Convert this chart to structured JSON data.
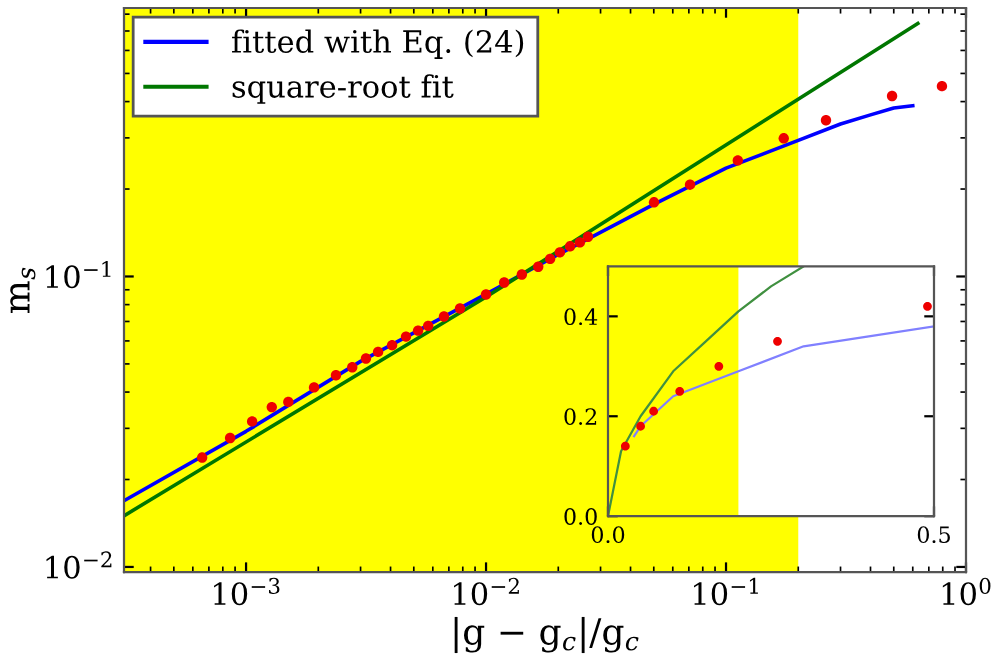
{
  "chart_data": [
    {
      "type": "scatter",
      "xlabel": "|g − g$_{c}$|/g$_{c}$",
      "ylabel": "m$_{s}$",
      "log": "xy",
      "xlim": [
        0.00031,
        1
      ],
      "ylim": [
        0.0096,
        0.84
      ],
      "xticks": [
        {
          "value": 0.001,
          "label": "10$^{−3}$"
        },
        {
          "value": 0.01,
          "label": "10$^{−2}$"
        },
        {
          "value": 0.1,
          "label": "10$^{−1}$"
        },
        {
          "value": 1,
          "label": "10$^{0}$"
        }
      ],
      "yticks": [
        {
          "value": 0.01,
          "label": "10$^{−2}$"
        },
        {
          "value": 0.1,
          "label": "10$^{−1}$"
        }
      ],
      "grid": false,
      "legend": "top left",
      "bands": [
        {
          "axis": "x",
          "from": 0.00031,
          "to": 0.2,
          "color": "#ffff00"
        }
      ],
      "series": [
        {
          "type": "line",
          "name": "fitted with Eq. (24)",
          "color": "#0000ff",
          "marker": "none",
          "line_style": "solid",
          "x": [
            0.00031,
            0.001,
            0.003,
            0.01,
            0.02,
            0.05,
            0.1,
            0.2,
            0.3,
            0.4,
            0.5,
            0.6
          ],
          "values": [
            0.0169,
            0.0293,
            0.051,
            0.087,
            0.119,
            0.177,
            0.236,
            0.294,
            0.335,
            0.36,
            0.38,
            0.387
          ]
        },
        {
          "type": "line",
          "name": "square-root fit",
          "color": "#007700",
          "marker": "none",
          "line_style": "solid",
          "x": [
            0.00031,
            0.01,
            0.63
          ],
          "values": [
            0.015,
            0.085,
            0.743
          ]
        },
        {
          "color": "#ee0000",
          "marker": "circle",
          "x": [
            0.000656,
            0.000858,
            0.00106,
            0.00128,
            0.0015,
            0.00192,
            0.00237,
            0.00277,
            0.00316,
            0.00355,
            0.00406,
            0.00464,
            0.00521,
            0.00574,
            0.00668,
            0.00779,
            0.01,
            0.0119,
            0.0141,
            0.0165,
            0.0185,
            0.0203,
            0.0224,
            0.0246,
            0.0266,
            0.0501,
            0.0708,
            0.112,
            0.174,
            0.261,
            0.492,
            0.794
          ],
          "values": [
            0.0238,
            0.0278,
            0.0317,
            0.0355,
            0.037,
            0.0415,
            0.0457,
            0.0487,
            0.0522,
            0.055,
            0.058,
            0.0621,
            0.0651,
            0.0676,
            0.0728,
            0.0776,
            0.0867,
            0.0953,
            0.1016,
            0.108,
            0.115,
            0.121,
            0.127,
            0.131,
            0.137,
            0.18,
            0.207,
            0.251,
            0.299,
            0.345,
            0.418,
            0.452
          ]
        }
      ]
    },
    {
      "type": "scatter",
      "xlim": [
        0,
        0.5
      ],
      "ylim": [
        0,
        0.5
      ],
      "xticks": [
        {
          "value": 0,
          "label": "0.0"
        },
        0.5
      ],
      "yticks": [
        {
          "value": 0,
          "label": "0.0"
        },
        0.2,
        0.4
      ],
      "grid": false,
      "legend": false,
      "bands": [
        {
          "axis": "x",
          "from": 0,
          "to": 0.2,
          "color": "#ffff00"
        }
      ],
      "series": [
        {
          "type": "line",
          "color": "#8080ff",
          "marker": "none",
          "line_style": "solid",
          "x": [
            0.04,
            0.05,
            0.1,
            0.2,
            0.3,
            0.4,
            0.5
          ],
          "values": [
            0.16,
            0.18,
            0.24,
            0.29,
            0.34,
            0.36,
            0.38
          ]
        },
        {
          "type": "line",
          "color": "#409040",
          "marker": "none",
          "line_style": "solid",
          "x": [
            0,
            0.02,
            0.05,
            0.1,
            0.15,
            0.2,
            0.25,
            0.3
          ],
          "values": [
            0,
            0.13,
            0.2,
            0.29,
            0.35,
            0.41,
            0.46,
            0.5
          ]
        },
        {
          "color": "#ee0000",
          "marker": "circle",
          "x": [
            0.0266,
            0.05,
            0.07,
            0.11,
            0.17,
            0.26,
            0.49
          ],
          "values": [
            0.14,
            0.18,
            0.21,
            0.25,
            0.3,
            0.35,
            0.42
          ]
        }
      ]
    }
  ]
}
